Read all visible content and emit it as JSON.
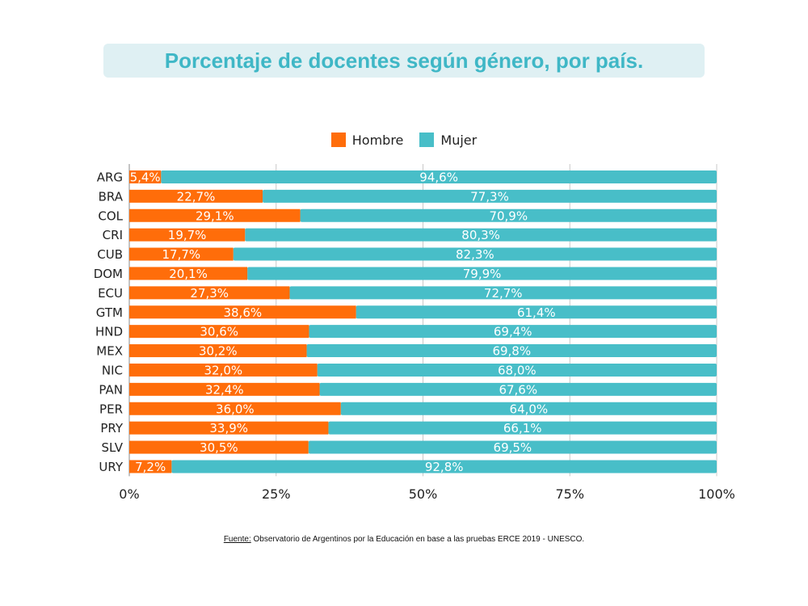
{
  "title": "Porcentaje de docentes según género, por país.",
  "source": {
    "label": "Fuente:",
    "text": " Observatorio de Argentinos por la Educación en base a las pruebas ERCE 2019 - UNESCO."
  },
  "colors": {
    "hombre": "#ff6d0a",
    "mujer": "#48bec8",
    "grid": "#c8c8c8",
    "text": "#222222"
  },
  "chart_data": {
    "type": "bar",
    "orientation": "horizontal",
    "stacked": true,
    "categories": [
      "ARG",
      "BRA",
      "COL",
      "CRI",
      "CUB",
      "DOM",
      "ECU",
      "GTM",
      "HND",
      "MEX",
      "NIC",
      "PAN",
      "PER",
      "PRY",
      "SLV",
      "URY"
    ],
    "series": [
      {
        "name": "Hombre",
        "values": [
          5.4,
          22.7,
          29.1,
          19.7,
          17.7,
          20.1,
          27.3,
          38.6,
          30.6,
          30.2,
          32.0,
          32.4,
          36.0,
          33.9,
          30.5,
          7.2
        ],
        "labels": [
          "5,4%",
          "22,7%",
          "29,1%",
          "19,7%",
          "17,7%",
          "20,1%",
          "27,3%",
          "38,6%",
          "30,6%",
          "30,2%",
          "32,0%",
          "32,4%",
          "36,0%",
          "33,9%",
          "30,5%",
          "7,2%"
        ]
      },
      {
        "name": "Mujer",
        "values": [
          94.6,
          77.3,
          70.9,
          80.3,
          82.3,
          79.9,
          72.7,
          61.4,
          69.4,
          69.8,
          68.0,
          67.6,
          64.0,
          66.1,
          69.5,
          92.8
        ],
        "labels": [
          "94,6%",
          "77,3%",
          "70,9%",
          "80,3%",
          "82,3%",
          "79,9%",
          "72,7%",
          "61,4%",
          "69,4%",
          "69,8%",
          "68,0%",
          "67,6%",
          "64,0%",
          "66,1%",
          "69,5%",
          "92,8%"
        ]
      }
    ],
    "xlim": [
      0,
      100
    ],
    "xticks": [
      "0%",
      "25%",
      "50%",
      "75%",
      "100%"
    ],
    "grid": true,
    "legend": "top-center"
  }
}
